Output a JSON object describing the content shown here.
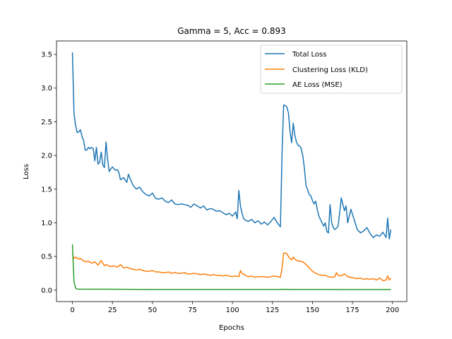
{
  "chart_data": {
    "type": "line",
    "title": "Gamma = 5, Acc = 0.893",
    "xlabel": "Epochs",
    "ylabel": "Loss",
    "xlim": [
      -9.95,
      208.95
    ],
    "ylim": [
      -0.17,
      3.7
    ],
    "xticks": [
      0,
      25,
      50,
      75,
      100,
      125,
      150,
      175,
      200
    ],
    "yticks": [
      0.0,
      0.5,
      1.0,
      1.5,
      2.0,
      2.5,
      3.0,
      3.5
    ],
    "ytick_labels": [
      "0.0",
      "0.5",
      "1.0",
      "1.5",
      "2.0",
      "2.5",
      "3.0",
      "3.5"
    ],
    "grid": false,
    "legend_position": "top-right",
    "series": [
      {
        "name": "Total Loss",
        "color": "#1f77b4",
        "x": [
          0,
          1,
          2,
          3,
          4,
          5,
          6,
          7,
          8,
          9,
          10,
          11,
          12,
          13,
          14,
          15,
          16,
          17,
          18,
          19,
          20,
          21,
          22,
          23,
          24,
          25,
          26,
          27,
          28,
          29,
          30,
          32,
          34,
          35,
          36,
          38,
          40,
          42,
          44,
          46,
          48,
          50,
          52,
          54,
          56,
          58,
          60,
          62,
          64,
          66,
          68,
          70,
          72,
          74,
          76,
          78,
          80,
          82,
          84,
          86,
          88,
          90,
          92,
          94,
          96,
          98,
          100,
          102,
          103,
          104,
          105,
          106,
          107,
          108,
          110,
          112,
          114,
          116,
          118,
          120,
          122,
          124,
          126,
          128,
          130,
          131,
          132,
          133,
          134,
          135,
          136,
          137,
          138,
          139,
          140,
          141,
          142,
          143,
          144,
          145,
          146,
          147,
          148,
          149,
          150,
          151,
          152,
          153,
          154,
          155,
          156,
          157,
          158,
          159,
          160,
          161,
          162,
          163,
          164,
          165,
          166,
          167,
          168,
          169,
          170,
          171,
          172,
          174,
          176,
          178,
          180,
          182,
          184,
          186,
          188,
          190,
          192,
          194,
          196,
          197,
          198,
          199
        ],
        "y": [
          3.53,
          2.62,
          2.44,
          2.34,
          2.35,
          2.38,
          2.28,
          2.22,
          2.08,
          2.08,
          2.12,
          2.1,
          2.12,
          2.1,
          1.92,
          2.12,
          1.87,
          1.9,
          2.05,
          1.86,
          1.82,
          2.2,
          1.94,
          1.76,
          1.8,
          1.83,
          1.8,
          1.78,
          1.79,
          1.75,
          1.64,
          1.67,
          1.6,
          1.72,
          1.66,
          1.55,
          1.5,
          1.53,
          1.46,
          1.42,
          1.4,
          1.44,
          1.36,
          1.35,
          1.37,
          1.32,
          1.3,
          1.34,
          1.28,
          1.27,
          1.28,
          1.27,
          1.26,
          1.23,
          1.28,
          1.25,
          1.22,
          1.25,
          1.19,
          1.21,
          1.2,
          1.17,
          1.18,
          1.15,
          1.12,
          1.14,
          1.1,
          1.16,
          1.06,
          1.48,
          1.25,
          1.14,
          1.06,
          1.04,
          1.02,
          1.05,
          1.0,
          1.03,
          0.98,
          1.01,
          0.97,
          1.02,
          1.08,
          1.0,
          0.94,
          2.05,
          2.75,
          2.74,
          2.72,
          2.63,
          2.35,
          2.19,
          2.48,
          2.3,
          2.2,
          2.15,
          2.14,
          2.1,
          1.99,
          1.8,
          1.55,
          1.49,
          1.42,
          1.4,
          1.33,
          1.28,
          1.32,
          1.2,
          1.1,
          1.05,
          1.0,
          0.95,
          1.0,
          0.87,
          0.85,
          1.27,
          1.0,
          0.93,
          0.9,
          0.92,
          0.95,
          1.15,
          1.37,
          1.27,
          1.18,
          1.25,
          1.0,
          1.2,
          1.05,
          0.9,
          0.85,
          0.88,
          0.93,
          0.84,
          0.78,
          0.82,
          0.8,
          0.86,
          0.78,
          1.07,
          0.76,
          0.9
        ]
      },
      {
        "name": "Clustering Loss (KLD)",
        "color": "#ff7f0e",
        "x": [
          0,
          1,
          2,
          3,
          4,
          5,
          6,
          8,
          10,
          12,
          14,
          16,
          18,
          20,
          21,
          22,
          24,
          26,
          28,
          30,
          32,
          34,
          36,
          38,
          40,
          42,
          44,
          46,
          48,
          50,
          52,
          54,
          56,
          58,
          60,
          62,
          64,
          66,
          68,
          70,
          72,
          74,
          76,
          78,
          80,
          82,
          84,
          86,
          88,
          90,
          92,
          94,
          96,
          98,
          100,
          102,
          104,
          105,
          106,
          108,
          110,
          112,
          114,
          116,
          118,
          120,
          122,
          124,
          126,
          128,
          130,
          131,
          132,
          133,
          134,
          135,
          136,
          137,
          138,
          139,
          140,
          142,
          144,
          146,
          148,
          150,
          152,
          154,
          156,
          158,
          160,
          162,
          164,
          165,
          166,
          168,
          170,
          172,
          174,
          176,
          178,
          180,
          182,
          184,
          186,
          188,
          190,
          192,
          194,
          196,
          197,
          198,
          199
        ],
        "y": [
          0.53,
          0.47,
          0.49,
          0.47,
          0.46,
          0.47,
          0.45,
          0.42,
          0.43,
          0.4,
          0.42,
          0.37,
          0.44,
          0.36,
          0.38,
          0.37,
          0.35,
          0.36,
          0.34,
          0.38,
          0.33,
          0.34,
          0.32,
          0.31,
          0.3,
          0.31,
          0.29,
          0.28,
          0.28,
          0.29,
          0.27,
          0.27,
          0.26,
          0.26,
          0.27,
          0.25,
          0.26,
          0.25,
          0.25,
          0.26,
          0.24,
          0.24,
          0.25,
          0.24,
          0.23,
          0.24,
          0.23,
          0.22,
          0.23,
          0.22,
          0.22,
          0.21,
          0.22,
          0.21,
          0.2,
          0.21,
          0.2,
          0.29,
          0.25,
          0.22,
          0.2,
          0.21,
          0.19,
          0.2,
          0.2,
          0.2,
          0.19,
          0.2,
          0.21,
          0.2,
          0.19,
          0.33,
          0.55,
          0.55,
          0.54,
          0.5,
          0.47,
          0.45,
          0.49,
          0.46,
          0.44,
          0.43,
          0.42,
          0.38,
          0.33,
          0.28,
          0.25,
          0.23,
          0.22,
          0.22,
          0.2,
          0.19,
          0.2,
          0.26,
          0.22,
          0.21,
          0.24,
          0.2,
          0.19,
          0.18,
          0.17,
          0.18,
          0.16,
          0.17,
          0.16,
          0.17,
          0.15,
          0.18,
          0.14,
          0.15,
          0.21,
          0.15,
          0.18
        ]
      },
      {
        "name": "AE Loss (MSE)",
        "color": "#2ca02c",
        "x": [
          0,
          1,
          2,
          3,
          10,
          20,
          30,
          40,
          50,
          60,
          70,
          80,
          90,
          100,
          110,
          120,
          130,
          132,
          134,
          140,
          150,
          160,
          170,
          180,
          190,
          199
        ],
        "y": [
          0.68,
          0.12,
          0.03,
          0.015,
          0.014,
          0.013,
          0.012,
          0.011,
          0.01,
          0.01,
          0.01,
          0.009,
          0.009,
          0.009,
          0.009,
          0.009,
          0.009,
          0.012,
          0.011,
          0.01,
          0.009,
          0.009,
          0.008,
          0.008,
          0.008,
          0.008
        ]
      }
    ]
  }
}
